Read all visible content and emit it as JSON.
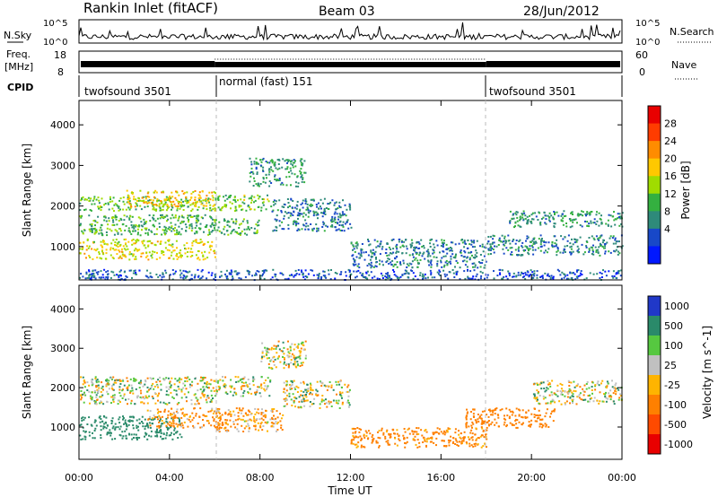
{
  "header": {
    "station": "Rankin Inlet (fitACF)",
    "beam": "Beam 03",
    "date": "28/Jun/2012"
  },
  "noise_panel": {
    "left_label": "N.Sky",
    "right_label": "N.Search",
    "left_ticks": [
      "10^5",
      "10^0"
    ],
    "right_ticks": [
      "10^5",
      "10^0"
    ]
  },
  "freq_panel": {
    "left_label_line1": "Freq.",
    "left_label_line2": "[MHz]",
    "left_ticks": [
      "18",
      "8"
    ],
    "right_label": "Nave",
    "right_ticks": [
      "60",
      "0"
    ]
  },
  "cpid": {
    "label": "CPID",
    "segments": [
      {
        "name": "twofsound 3501",
        "start_hour": 0,
        "end_hour": 6
      },
      {
        "name": "normal (fast) 151",
        "start_hour": 6,
        "end_hour": 18
      },
      {
        "name": "twofsound 3501",
        "start_hour": 18,
        "end_hour": 24
      }
    ]
  },
  "power_legend": {
    "title": "Power [dB]",
    "labels": [
      "28",
      "24",
      "20",
      "16",
      "12",
      "8",
      "4"
    ],
    "colors": [
      "#e80000",
      "#ff3c00",
      "#ff8c00",
      "#ffc800",
      "#a0dc00",
      "#34b040",
      "#2e8a7a",
      "#1848c8",
      "#0018ff"
    ]
  },
  "velocity_legend": {
    "title": "Velocity [m s^-1]",
    "labels": [
      "1000",
      "500",
      "100",
      "25",
      "-25",
      "-100",
      "-500",
      "-1000"
    ],
    "colors": [
      "#2038c8",
      "#2a8a6a",
      "#56c840",
      "#c0c0c0",
      "#ffb400",
      "#ff8000",
      "#ff4a00",
      "#e80000"
    ]
  },
  "x_axis": {
    "label": "Time UT",
    "ticks": [
      "00:00",
      "04:00",
      "08:00",
      "12:00",
      "16:00",
      "20:00",
      "00:00"
    ]
  },
  "chart_data": [
    {
      "type": "heatmap",
      "name": "Power",
      "xlabel": "Time UT",
      "ylabel": "Slant Range [km]",
      "x_range_hours": [
        0,
        24
      ],
      "ylim": [
        180,
        4600
      ],
      "yticks": [
        1000,
        2000,
        3000,
        4000
      ],
      "colorbar_range_db": [
        0,
        32
      ],
      "scatter_bands": [
        {
          "t0": 0.0,
          "t1": 6.0,
          "r0": 1900,
          "r1": 2250,
          "power_db": 14
        },
        {
          "t0": 0.0,
          "t1": 6.0,
          "r0": 1300,
          "r1": 1800,
          "power_db": 12
        },
        {
          "t0": 0.0,
          "t1": 6.0,
          "r0": 700,
          "r1": 1200,
          "power_db": 18
        },
        {
          "t0": 2.0,
          "t1": 6.0,
          "r0": 2000,
          "r1": 2400,
          "power_db": 20
        },
        {
          "t0": 6.0,
          "t1": 8.5,
          "r0": 1900,
          "r1": 2300,
          "power_db": 14
        },
        {
          "t0": 6.0,
          "t1": 8.0,
          "r0": 1300,
          "r1": 1700,
          "power_db": 12
        },
        {
          "t0": 7.5,
          "t1": 10.0,
          "r0": 2500,
          "r1": 3200,
          "power_db": 10
        },
        {
          "t0": 8.5,
          "t1": 12.0,
          "r0": 1400,
          "r1": 2200,
          "power_db": 8
        },
        {
          "t0": 12.0,
          "t1": 18.0,
          "r0": 500,
          "r1": 1200,
          "power_db": 8
        },
        {
          "t0": 18.0,
          "t1": 24.0,
          "r0": 800,
          "r1": 1300,
          "power_db": 9
        },
        {
          "t0": 19.0,
          "t1": 24.0,
          "r0": 1500,
          "r1": 1900,
          "power_db": 10
        },
        {
          "t0": 0.0,
          "t1": 24.0,
          "r0": 200,
          "r1": 450,
          "power_db": 6
        }
      ]
    },
    {
      "type": "heatmap",
      "name": "Velocity",
      "xlabel": "Time UT",
      "ylabel": "Slant Range [km]",
      "x_range_hours": [
        0,
        24
      ],
      "ylim": [
        180,
        4600
      ],
      "yticks": [
        1000,
        2000,
        3000,
        4000
      ],
      "colorbar_range_ms": [
        -1000,
        1000
      ],
      "scatter_bands": [
        {
          "t0": 0.0,
          "t1": 6.0,
          "r0": 1600,
          "r1": 2300,
          "velocity_ms": 0
        },
        {
          "t0": 0.0,
          "t1": 4.5,
          "r0": 700,
          "r1": 1300,
          "velocity_ms": 300
        },
        {
          "t0": 3.0,
          "t1": 6.5,
          "r0": 1000,
          "r1": 1500,
          "velocity_ms": -150
        },
        {
          "t0": 6.0,
          "t1": 8.5,
          "r0": 1800,
          "r1": 2300,
          "velocity_ms": 0
        },
        {
          "t0": 6.0,
          "t1": 9.0,
          "r0": 900,
          "r1": 1500,
          "velocity_ms": -120
        },
        {
          "t0": 8.0,
          "t1": 10.0,
          "r0": 2500,
          "r1": 3200,
          "velocity_ms": 0
        },
        {
          "t0": 9.0,
          "t1": 12.0,
          "r0": 1500,
          "r1": 2200,
          "velocity_ms": 0
        },
        {
          "t0": 12.0,
          "t1": 18.0,
          "r0": 500,
          "r1": 1000,
          "velocity_ms": -200
        },
        {
          "t0": 17.0,
          "t1": 21.0,
          "r0": 1000,
          "r1": 1500,
          "velocity_ms": -300
        },
        {
          "t0": 20.0,
          "t1": 24.0,
          "r0": 1600,
          "r1": 2200,
          "velocity_ms": 0
        }
      ]
    }
  ]
}
